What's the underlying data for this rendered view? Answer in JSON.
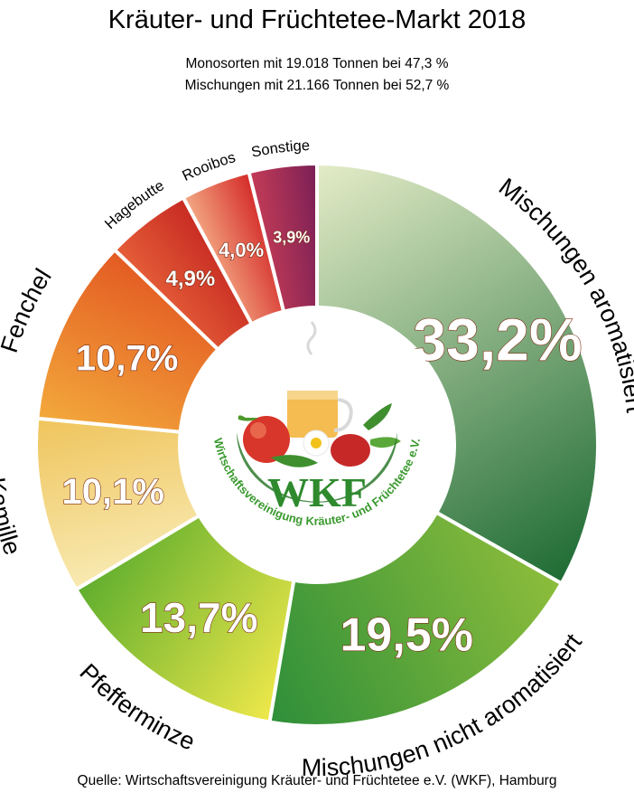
{
  "title": "Kräuter- und Früchtetee-Markt 2018",
  "subtitle_line1": "Monosorten mit 19.018 Tonnen bei 47,3 %",
  "subtitle_line2": "Mischungen mit 21.166 Tonnen bei 52,7 %",
  "source": "Quelle: Wirtschaftsvereinigung Kräuter- und Früchtetee e.V. (WKF), Hamburg",
  "logo": {
    "letters": "WKF",
    "ring_text": "Wirtschaftsvereinigung Kräuter- und Früchtetee e.V."
  },
  "chart_data": {
    "type": "pie",
    "donut": true,
    "categories": [
      "Mischungen aromatisiert",
      "Mischungen nicht aromatisiert",
      "Pfefferminze",
      "Kamille",
      "Fenchel",
      "Hagebutte",
      "Rooibos",
      "Sonstige"
    ],
    "values": [
      33.2,
      19.5,
      13.7,
      10.1,
      10.7,
      4.9,
      4.0,
      3.9
    ],
    "labels": [
      "33,2%",
      "19,5%",
      "13,7%",
      "10,1%",
      "10,7%",
      "4,9%",
      "4,0%",
      "3,9%"
    ],
    "colors": [
      [
        "#e4ecc8",
        "#1e6b34"
      ],
      [
        "#8dbd3b",
        "#2e8f3a"
      ],
      [
        "#efe84a",
        "#5fae2e"
      ],
      [
        "#f8eab2",
        "#efc45c"
      ],
      [
        "#f3a93c",
        "#e35a22"
      ],
      [
        "#e55f38",
        "#c72a22"
      ],
      [
        "#f3a883",
        "#d42928"
      ],
      [
        "#c43c57",
        "#7a1f55"
      ]
    ]
  }
}
